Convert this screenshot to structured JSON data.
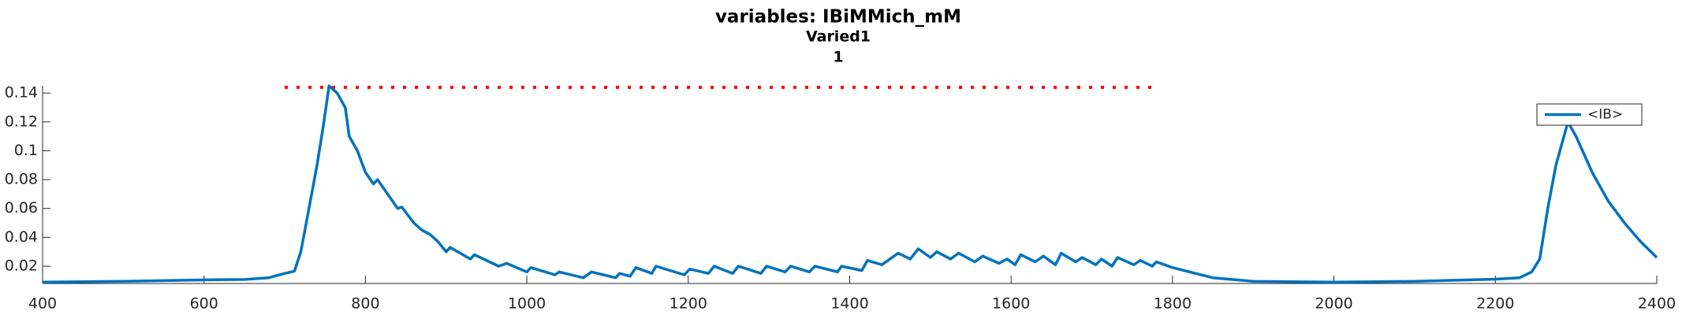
{
  "chart_data": {
    "type": "line",
    "title": "variables: IBiMMich_mM",
    "subtitle": "Varied1",
    "subtitle2": "1",
    "x": [
      400,
      500,
      600,
      650,
      680,
      700,
      712,
      720,
      730,
      740,
      748,
      755,
      765,
      775,
      780,
      790,
      800,
      810,
      815,
      830,
      840,
      845,
      860,
      870,
      880,
      890,
      900,
      905,
      930,
      935,
      965,
      975,
      1000,
      1005,
      1035,
      1040,
      1070,
      1080,
      1110,
      1115,
      1128,
      1135,
      1155,
      1160,
      1195,
      1202,
      1225,
      1232,
      1255,
      1262,
      1290,
      1297,
      1320,
      1327,
      1350,
      1357,
      1385,
      1390,
      1415,
      1422,
      1440,
      1460,
      1475,
      1485,
      1500,
      1508,
      1525,
      1535,
      1555,
      1565,
      1585,
      1595,
      1605,
      1612,
      1630,
      1640,
      1655,
      1662,
      1680,
      1688,
      1705,
      1712,
      1725,
      1732,
      1752,
      1760,
      1775,
      1780,
      1800,
      1850,
      1900,
      2000,
      2100,
      2200,
      2230,
      2245,
      2255,
      2265,
      2275,
      2290,
      2300,
      2320,
      2340,
      2360,
      2380,
      2400
    ],
    "series": [
      {
        "name": "<IB>",
        "color": "#0072bd",
        "values": [
          0.009,
          0.0095,
          0.0105,
          0.0108,
          0.012,
          0.015,
          0.0165,
          0.03,
          0.06,
          0.09,
          0.118,
          0.145,
          0.14,
          0.13,
          0.11,
          0.1,
          0.085,
          0.077,
          0.08,
          0.068,
          0.06,
          0.061,
          0.05,
          0.045,
          0.042,
          0.037,
          0.03,
          0.033,
          0.025,
          0.028,
          0.02,
          0.022,
          0.016,
          0.019,
          0.014,
          0.016,
          0.012,
          0.016,
          0.012,
          0.015,
          0.013,
          0.019,
          0.015,
          0.02,
          0.014,
          0.018,
          0.015,
          0.02,
          0.015,
          0.02,
          0.015,
          0.02,
          0.016,
          0.02,
          0.016,
          0.02,
          0.016,
          0.02,
          0.017,
          0.024,
          0.021,
          0.029,
          0.025,
          0.032,
          0.026,
          0.03,
          0.025,
          0.029,
          0.023,
          0.027,
          0.022,
          0.025,
          0.021,
          0.028,
          0.023,
          0.027,
          0.021,
          0.029,
          0.023,
          0.026,
          0.021,
          0.025,
          0.02,
          0.026,
          0.021,
          0.024,
          0.02,
          0.023,
          0.019,
          0.012,
          0.0095,
          0.009,
          0.0095,
          0.011,
          0.012,
          0.016,
          0.025,
          0.06,
          0.09,
          0.12,
          0.11,
          0.085,
          0.065,
          0.05,
          0.037,
          0.026
        ]
      }
    ],
    "reference_line": {
      "x": [
        700,
        1780
      ],
      "y": 0.144,
      "color": "#ff0000"
    },
    "xlim": [
      400,
      2400
    ],
    "xticks": [
      400,
      600,
      800,
      1000,
      1200,
      1400,
      1600,
      1800,
      2000,
      2200,
      2400
    ],
    "ylim": [
      0.008,
      0.145
    ],
    "yticks": [
      0.02,
      0.04,
      0.06,
      0.08,
      0.1,
      0.12,
      0.14
    ],
    "legend": "northeast"
  }
}
